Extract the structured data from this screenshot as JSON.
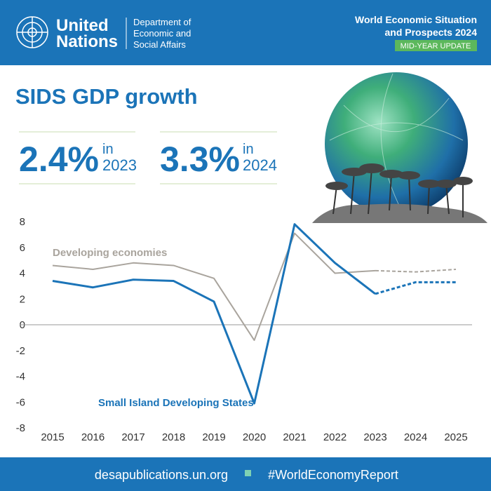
{
  "header": {
    "org_lines": [
      "United",
      "Nations"
    ],
    "department_lines": [
      "Department of",
      "Economic and",
      "Social Affairs"
    ],
    "report_lines": [
      "World Economic Situation",
      "and Prospects 2024"
    ],
    "badge": "MID-YEAR UPDATE"
  },
  "highlights": [
    {
      "figure": "2.4%",
      "prefix": "in",
      "year": "2023"
    },
    {
      "figure": "3.3%",
      "prefix": "in",
      "year": "2024"
    }
  ],
  "chart_data": {
    "type": "line",
    "title": "SIDS GDP growth",
    "x": [
      2015,
      2016,
      2017,
      2018,
      2019,
      2020,
      2021,
      2022,
      2023,
      2024,
      2025
    ],
    "series": [
      {
        "name": "Developing economies",
        "color": "#a9a49d",
        "values": [
          4.6,
          4.3,
          4.8,
          4.6,
          3.6,
          -1.2,
          7.1,
          4.0,
          4.2,
          4.1,
          4.3
        ]
      },
      {
        "name": "Small Island Developing States",
        "color": "#1b74b8",
        "values": [
          3.4,
          2.9,
          3.5,
          3.4,
          1.8,
          -6.1,
          7.8,
          4.8,
          2.4,
          3.3,
          3.3
        ]
      }
    ],
    "dashed_from": 2023,
    "xlim": [
      2015,
      2025
    ],
    "ylim": [
      -8,
      8
    ],
    "yticks": [
      -8,
      -6,
      -4,
      -2,
      0,
      2,
      4,
      6,
      8
    ]
  },
  "footer": {
    "website": "desapublications.un.org",
    "hashtag": "#WorldEconomyReport"
  }
}
